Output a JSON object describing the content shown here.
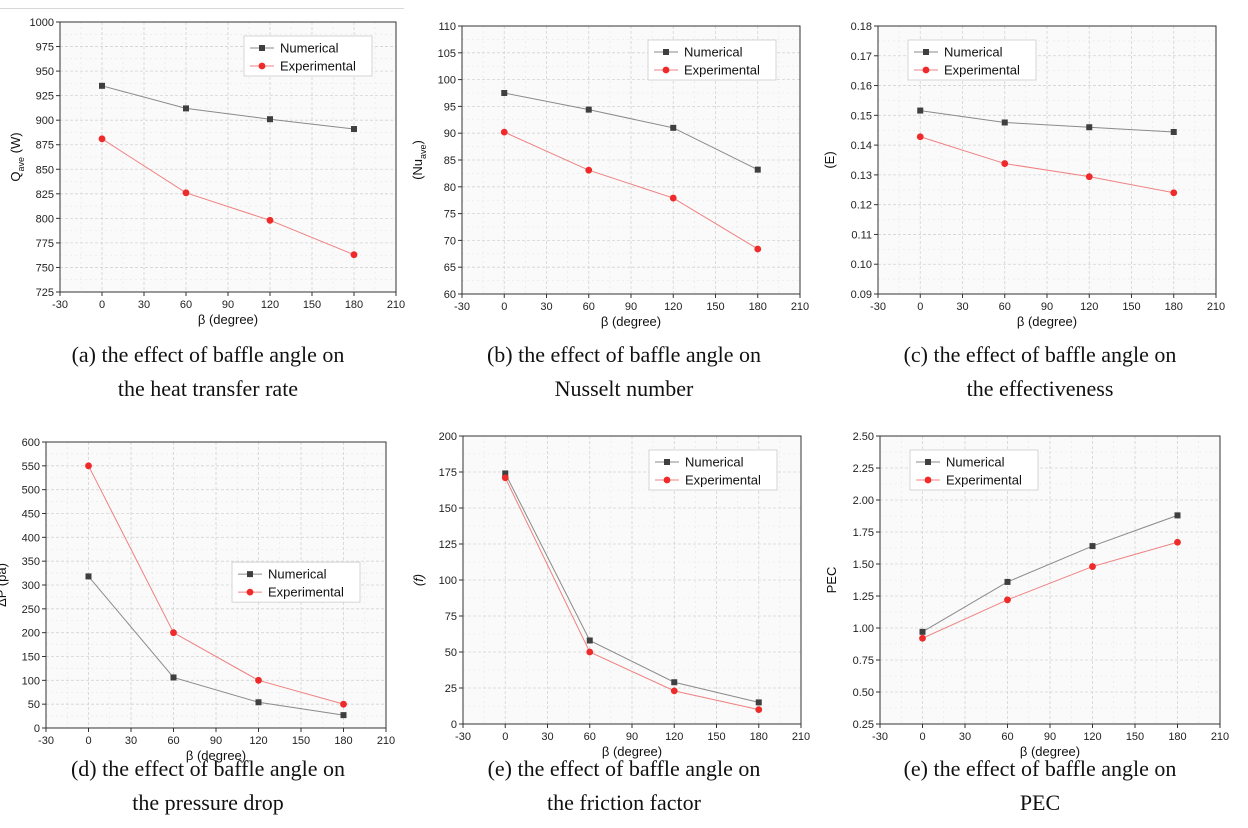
{
  "colors": {
    "numerical": "#3f3f3f",
    "experimental": "#ee2a2a",
    "grid": "#d4d4d4",
    "axis": "#333333"
  },
  "chart_data": [
    {
      "type": "line",
      "caption": [
        "(a) the effect of baffle angle on",
        "the heat transfer rate"
      ],
      "xlabel": "β (degree)",
      "ylabel": "Q_ave (W)",
      "ylabel_main": "Q",
      "ylabel_sub": "ave",
      "ylabel_tail": " (W)",
      "xlim": [
        -30,
        210
      ],
      "ylim": [
        725,
        1000
      ],
      "xticks": [
        -30,
        0,
        30,
        60,
        90,
        120,
        150,
        180,
        210
      ],
      "yticks": [
        725,
        750,
        775,
        800,
        825,
        850,
        875,
        900,
        925,
        950,
        975,
        1000
      ],
      "ydecimals": 0,
      "legend": "top-right",
      "series": [
        {
          "name": "Numerical",
          "marker": "square",
          "x": [
            0,
            60,
            120,
            180
          ],
          "y": [
            935,
            912,
            901,
            891
          ]
        },
        {
          "name": "Experimental",
          "marker": "circle",
          "x": [
            0,
            60,
            120,
            180
          ],
          "y": [
            881,
            826,
            798,
            763
          ]
        }
      ]
    },
    {
      "type": "line",
      "caption": [
        "(b) the effect of baffle angle on",
        "Nusselt number"
      ],
      "xlabel": "β (degree)",
      "ylabel": "(Nu_ave)",
      "ylabel_main": "(Nu",
      "ylabel_sub": "ave",
      "ylabel_tail": ")",
      "xlim": [
        -30,
        210
      ],
      "ylim": [
        60,
        110
      ],
      "xticks": [
        -30,
        0,
        30,
        60,
        90,
        120,
        150,
        180,
        210
      ],
      "yticks": [
        60,
        65,
        70,
        75,
        80,
        85,
        90,
        95,
        100,
        105,
        110
      ],
      "ydecimals": 0,
      "legend": "top-right",
      "series": [
        {
          "name": "Numerical",
          "marker": "square",
          "x": [
            0,
            60,
            120,
            180
          ],
          "y": [
            97.5,
            94.4,
            91,
            83.2
          ]
        },
        {
          "name": "Experimental",
          "marker": "circle",
          "x": [
            0,
            60,
            120,
            180
          ],
          "y": [
            90.2,
            83.1,
            77.9,
            68.4
          ]
        }
      ]
    },
    {
      "type": "line",
      "caption": [
        "(c) the effect of baffle angle on",
        "the effectiveness"
      ],
      "xlabel": "β (degree)",
      "ylabel": "(E)",
      "ylabel_main": "(E)",
      "ylabel_sub": "",
      "ylabel_tail": "",
      "xlim": [
        -30,
        210
      ],
      "ylim": [
        0.09,
        0.18
      ],
      "xticks": [
        -30,
        0,
        30,
        60,
        90,
        120,
        150,
        180,
        210
      ],
      "yticks": [
        0.09,
        0.1,
        0.11,
        0.12,
        0.13,
        0.14,
        0.15,
        0.16,
        0.17,
        0.18
      ],
      "ydecimals": 2,
      "legend": "top-left",
      "series": [
        {
          "name": "Numerical",
          "marker": "square",
          "x": [
            0,
            60,
            120,
            180
          ],
          "y": [
            0.1516,
            0.1476,
            0.146,
            0.1444
          ]
        },
        {
          "name": "Experimental",
          "marker": "circle",
          "x": [
            0,
            60,
            120,
            180
          ],
          "y": [
            0.1428,
            0.1338,
            0.1294,
            0.124
          ]
        }
      ]
    },
    {
      "type": "line",
      "caption": [
        "(d) the effect of baffle angle on",
        "the pressure drop"
      ],
      "xlabel": "β (degree)",
      "ylabel": "ΔP (pa)",
      "ylabel_main": "ΔP (pa)",
      "ylabel_sub": "",
      "ylabel_tail": "",
      "xlim": [
        -30,
        210
      ],
      "ylim": [
        0,
        600
      ],
      "xticks": [
        -30,
        0,
        30,
        60,
        90,
        120,
        150,
        180,
        210
      ],
      "yticks": [
        0,
        50,
        100,
        150,
        200,
        250,
        300,
        350,
        400,
        450,
        500,
        550,
        600
      ],
      "ydecimals": 0,
      "legend": "middle-right",
      "series": [
        {
          "name": "Numerical",
          "marker": "square",
          "x": [
            0,
            60,
            120,
            180
          ],
          "y": [
            318,
            106,
            54,
            27
          ]
        },
        {
          "name": "Experimental",
          "marker": "circle",
          "x": [
            0,
            60,
            120,
            180
          ],
          "y": [
            550,
            200,
            100,
            50
          ]
        }
      ]
    },
    {
      "type": "line",
      "caption": [
        "(e) the effect of baffle angle on",
        "the friction factor"
      ],
      "xlabel": "β (degree)",
      "ylabel": "(f)",
      "ylabel_main": "(f)",
      "ylabel_sub": "",
      "ylabel_tail": "",
      "xlim": [
        -30,
        210
      ],
      "ylim": [
        0,
        200
      ],
      "xticks": [
        -30,
        0,
        30,
        60,
        90,
        120,
        150,
        180,
        210
      ],
      "yticks": [
        0,
        25,
        50,
        75,
        100,
        125,
        150,
        175,
        200
      ],
      "ydecimals": 0,
      "legend": "top-right",
      "series": [
        {
          "name": "Numerical",
          "marker": "square",
          "x": [
            0,
            60,
            120,
            180
          ],
          "y": [
            174,
            58,
            29,
            15
          ]
        },
        {
          "name": "Experimental",
          "marker": "circle",
          "x": [
            0,
            60,
            120,
            180
          ],
          "y": [
            171,
            50,
            23,
            10
          ]
        }
      ]
    },
    {
      "type": "line",
      "caption": [
        "(e) the effect of baffle angle on",
        "PEC"
      ],
      "xlabel": "β (degree)",
      "ylabel": "PEC",
      "ylabel_main": "PEC",
      "ylabel_sub": "",
      "ylabel_tail": "",
      "xlim": [
        -30,
        210
      ],
      "ylim": [
        0.25,
        2.5
      ],
      "xticks": [
        -30,
        0,
        30,
        60,
        90,
        120,
        150,
        180,
        210
      ],
      "yticks": [
        0.25,
        0.5,
        0.75,
        1.0,
        1.25,
        1.5,
        1.75,
        2.0,
        2.25,
        2.5
      ],
      "ydecimals": 2,
      "legend": "top-left",
      "series": [
        {
          "name": "Numerical",
          "marker": "square",
          "x": [
            0,
            60,
            120,
            180
          ],
          "y": [
            0.97,
            1.36,
            1.64,
            1.88
          ]
        },
        {
          "name": "Experimental",
          "marker": "circle",
          "x": [
            0,
            60,
            120,
            180
          ],
          "y": [
            0.92,
            1.22,
            1.48,
            1.67
          ]
        }
      ]
    }
  ]
}
